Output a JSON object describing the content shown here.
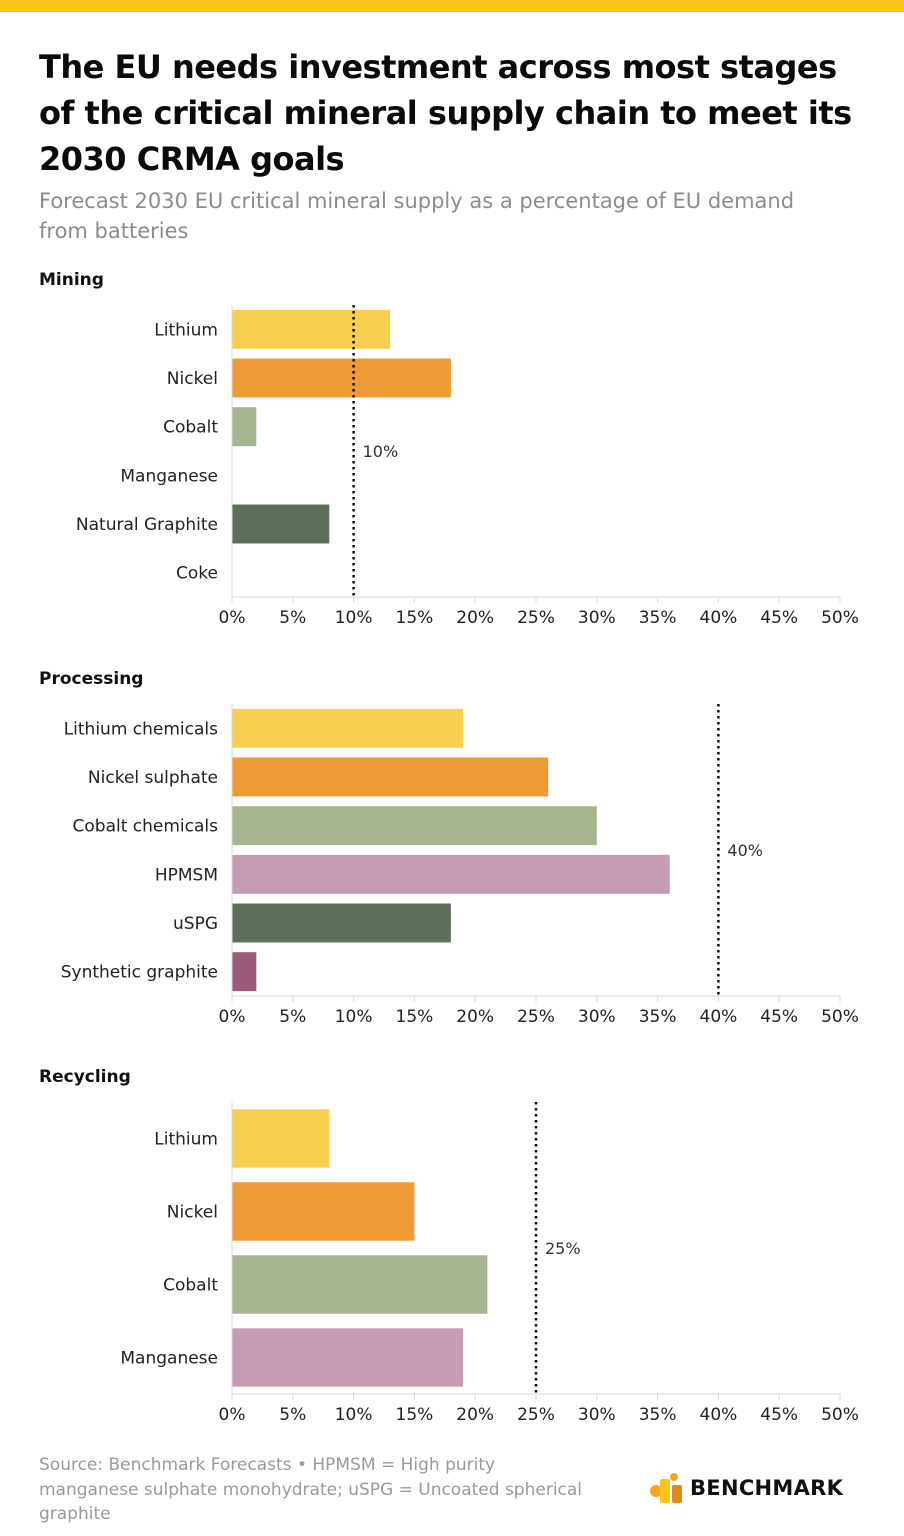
{
  "colors": {
    "accent_bar": "#fcc419",
    "lithium": "#f8ce4e",
    "nickel": "#ee9a35",
    "cobalt": "#a6b490",
    "manganese": "#c79bb4",
    "graphite": "#5d6f58",
    "synthetic_graphite": "#9a5a78",
    "axis": "#d9d9d9",
    "target_line": "#111111"
  },
  "header": {
    "title": "The EU needs investment across most stages of the critical mineral supply chain to meet its 2030 CRMA goals",
    "subtitle": "Forecast 2030 EU critical mineral supply as a percentage of EU demand from batteries"
  },
  "chart_data": [
    {
      "type": "bar",
      "orientation": "horizontal",
      "title": "Mining",
      "categories": [
        "Lithium",
        "Nickel",
        "Cobalt",
        "Manganese",
        "Natural Graphite",
        "Coke"
      ],
      "values": [
        13,
        18,
        2,
        0,
        8,
        0
      ],
      "bar_colors": [
        "lithium",
        "nickel",
        "cobalt",
        "manganese",
        "graphite",
        "graphite"
      ],
      "target": 10,
      "target_label": "10%",
      "xlim": [
        0,
        50
      ],
      "xticks": [
        0,
        5,
        10,
        15,
        20,
        25,
        30,
        35,
        40,
        45,
        50
      ],
      "xtick_labels": [
        "0%",
        "5%",
        "10%",
        "15%",
        "20%",
        "25%",
        "30%",
        "35%",
        "40%",
        "45%",
        "50%"
      ]
    },
    {
      "type": "bar",
      "orientation": "horizontal",
      "title": "Processing",
      "categories": [
        "Lithium chemicals",
        "Nickel sulphate",
        "Cobalt chemicals",
        "HPMSM",
        "uSPG",
        "Synthetic graphite"
      ],
      "values": [
        19,
        26,
        30,
        36,
        18,
        2
      ],
      "bar_colors": [
        "lithium",
        "nickel",
        "cobalt",
        "manganese",
        "graphite",
        "synthetic_graphite"
      ],
      "target": 40,
      "target_label": "40%",
      "xlim": [
        0,
        50
      ],
      "xticks": [
        0,
        5,
        10,
        15,
        20,
        25,
        30,
        35,
        40,
        45,
        50
      ],
      "xtick_labels": [
        "0%",
        "5%",
        "10%",
        "15%",
        "20%",
        "25%",
        "30%",
        "35%",
        "40%",
        "45%",
        "50%"
      ]
    },
    {
      "type": "bar",
      "orientation": "horizontal",
      "title": "Recycling",
      "categories": [
        "Lithium",
        "Nickel",
        "Cobalt",
        "Manganese"
      ],
      "values": [
        8,
        15,
        21,
        19
      ],
      "bar_colors": [
        "lithium",
        "nickel",
        "cobalt",
        "manganese"
      ],
      "target": 25,
      "target_label": "25%",
      "xlim": [
        0,
        50
      ],
      "xticks": [
        0,
        5,
        10,
        15,
        20,
        25,
        30,
        35,
        40,
        45,
        50
      ],
      "xtick_labels": [
        "0%",
        "5%",
        "10%",
        "15%",
        "20%",
        "25%",
        "30%",
        "35%",
        "40%",
        "45%",
        "50%"
      ]
    }
  ],
  "footer": {
    "source": "Source: Benchmark Forecasts • HPMSM = High purity manganese sulphate monohydrate; uSPG = Uncoated spherical graphite",
    "brand": "BENCHMARK"
  }
}
